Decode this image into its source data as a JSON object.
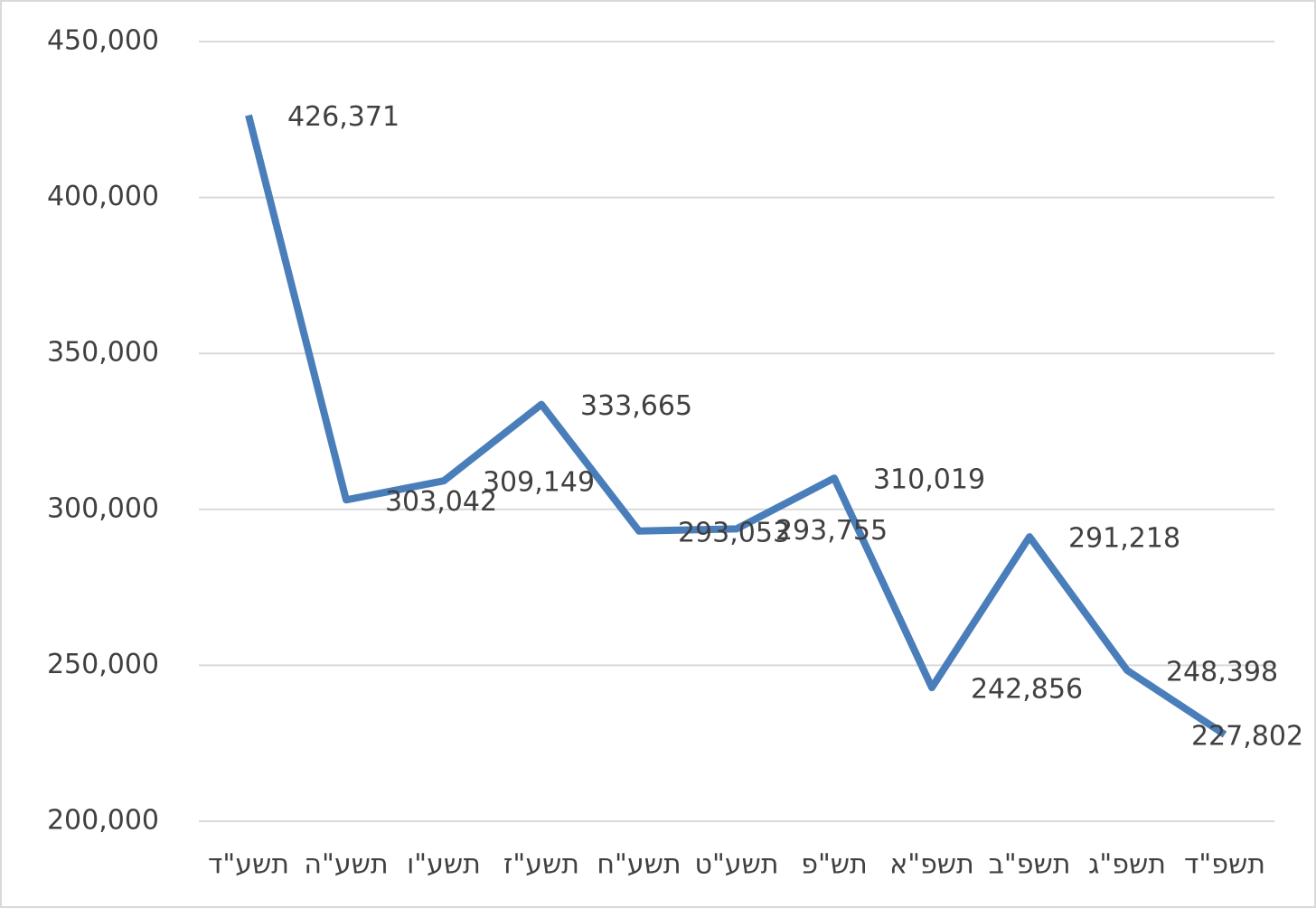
{
  "chart_data": {
    "type": "line",
    "categories": [
      "תשע\"ד",
      "תשע\"ה",
      "תשע\"ו",
      "תשע\"ז",
      "תשע\"ח",
      "תשע\"ט",
      "תש\"פ",
      "תשפ\"א",
      "תשפ\"ב",
      "תשפ\"ג",
      "תשפ\"ד"
    ],
    "series": [
      {
        "color": "#4a7ebb",
        "values": [
          426371,
          303042,
          309149,
          333665,
          293053,
          293755,
          310019,
          242856,
          291218,
          248398,
          227802
        ],
        "value_labels": [
          "426,371",
          "303,042",
          "309,149",
          "333,665",
          "293,053",
          "293,755",
          "310,019",
          "242,856",
          "291,218",
          "248,398",
          "227,802"
        ]
      }
    ],
    "ylim": [
      200000,
      450000
    ],
    "yticks": [
      {
        "value": 200000,
        "label": "200,000"
      },
      {
        "value": 250000,
        "label": "250,000"
      },
      {
        "value": 300000,
        "label": "300,000"
      },
      {
        "value": 350000,
        "label": "350,000"
      },
      {
        "value": 400000,
        "label": "400,000"
      },
      {
        "value": 450000,
        "label": "450,000"
      }
    ],
    "grid": true
  }
}
